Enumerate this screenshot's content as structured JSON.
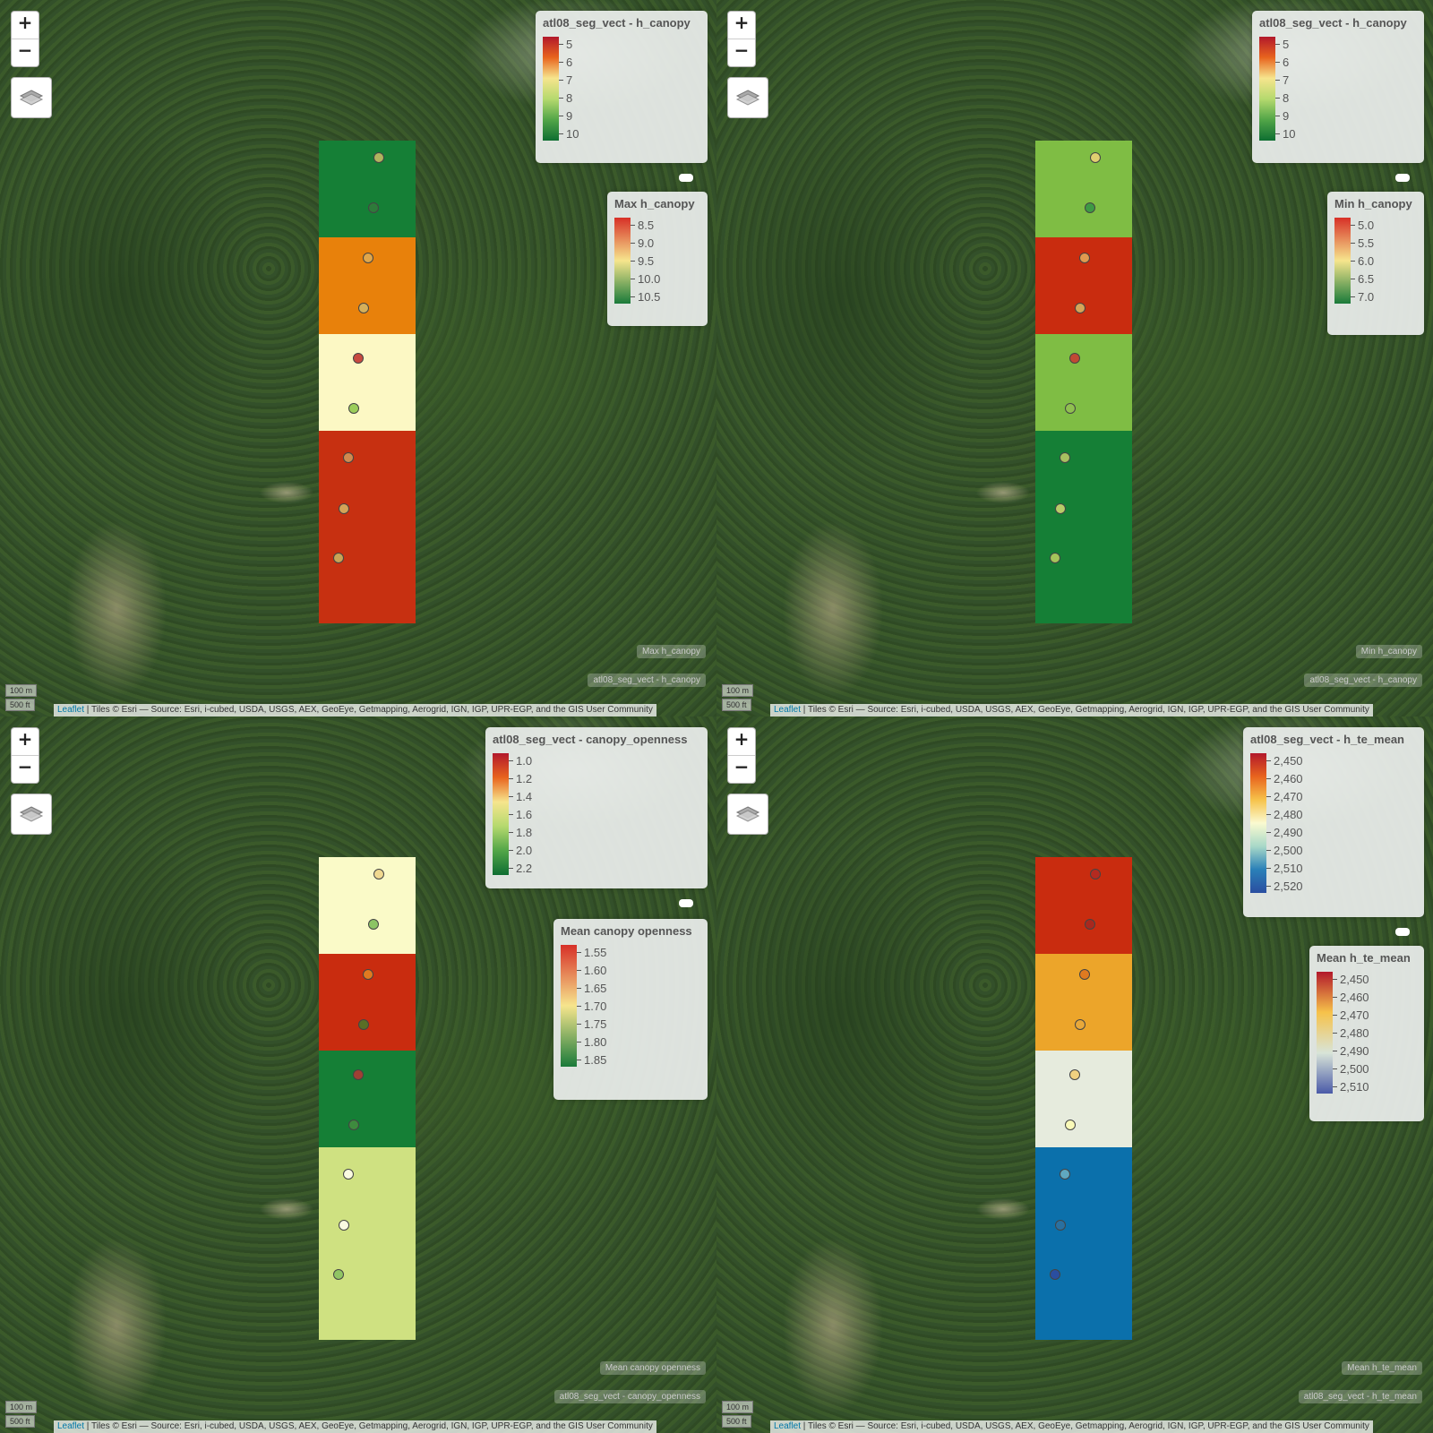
{
  "attribution": {
    "link": "Leaflet",
    "text": " | Tiles © Esri — Source: Esri, i-cubed, USDA, USGS, AEX, GeoEye, Getmapping, Aerogrid, IGN, IGP, UPR-EGP, and the GIS User Community"
  },
  "scale": {
    "metric": "100 m",
    "imperial": "500 ft"
  },
  "controls": {
    "zoom_in": "+",
    "zoom_out": "−"
  },
  "panels": [
    {
      "legend1": {
        "title": "atl08_seg_vect - h_canopy",
        "labels": [
          "5",
          "6",
          "7",
          "8",
          "9",
          "10"
        ],
        "colors": [
          "#b2182b",
          "#e8641e",
          "#f6e58d",
          "#b5d96e",
          "#52a548",
          "#0e6e32"
        ]
      },
      "legend2": {
        "title": "Max h_canopy",
        "labels": [
          "8.5",
          "9.0",
          "9.5",
          "10.0",
          "10.5"
        ],
        "colors": [
          "#d73027",
          "#f6e58d",
          "#1a7a3a"
        ]
      },
      "layer1_label": "Max h_canopy",
      "layer2_label": "atl08_seg_vect - h_canopy",
      "cells": [
        "#157f36",
        "#e8810b",
        "#fcf8c4",
        "#c73011"
      ],
      "points": [
        "#b0b45e",
        "#2e7a3a",
        "#e0a64a",
        "#d6b05a",
        "#c84a40",
        "#9ccd5a",
        "#d08a50",
        "#d4a458",
        "#c8a456"
      ]
    },
    {
      "legend1": {
        "title": "atl08_seg_vect - h_canopy",
        "labels": [
          "5",
          "6",
          "7",
          "8",
          "9",
          "10"
        ],
        "colors": [
          "#b2182b",
          "#e8641e",
          "#f6e58d",
          "#b5d96e",
          "#52a548",
          "#0e6e32"
        ]
      },
      "legend2": {
        "title": "Min h_canopy",
        "labels": [
          "5.0",
          "5.5",
          "6.0",
          "6.5",
          "7.0"
        ],
        "colors": [
          "#d73027",
          "#f6e58d",
          "#1a7a3a"
        ]
      },
      "layer1_label": "Min h_canopy",
      "layer2_label": "atl08_seg_vect - h_canopy",
      "cells": [
        "#7fbd44",
        "#c92c0f",
        "#7fbd44",
        "#157f36"
      ],
      "points": [
        "#e0d070",
        "#3e9a44",
        "#e09a50",
        "#d6a458",
        "#c04a34",
        "#90c050",
        "#a8c060",
        "#b8cc68",
        "#a6c45a"
      ]
    },
    {
      "legend1": {
        "title": "atl08_seg_vect - canopy_openness",
        "labels": [
          "1.0",
          "1.2",
          "1.4",
          "1.6",
          "1.8",
          "2.0",
          "2.2"
        ],
        "colors": [
          "#b2182b",
          "#e8641e",
          "#f6e58d",
          "#b5d96e",
          "#52a548",
          "#0e6e32"
        ]
      },
      "legend2": {
        "title": "Mean canopy openness",
        "labels": [
          "1.55",
          "1.60",
          "1.65",
          "1.70",
          "1.75",
          "1.80",
          "1.85"
        ],
        "colors": [
          "#d73027",
          "#f6e58d",
          "#1a7a3a"
        ]
      },
      "layer1_label": "Mean canopy openness",
      "layer2_label": "atl08_seg_vect - canopy_openness",
      "cells": [
        "#fafac8",
        "#c92c0f",
        "#157f36",
        "#cfe181"
      ],
      "points": [
        "#f0d890",
        "#8cc464",
        "#e07a20",
        "#5a6e26",
        "#a04034",
        "#3e8a3e",
        "#fafae0",
        "#fafae0",
        "#90c464"
      ]
    },
    {
      "legend1": {
        "title": "atl08_seg_vect - h_te_mean",
        "labels": [
          "2,450",
          "2,460",
          "2,470",
          "2,480",
          "2,490",
          "2,500",
          "2,510",
          "2,520"
        ],
        "colors": [
          "#b2182b",
          "#e8641e",
          "#f6c24a",
          "#fafad0",
          "#a8d8c8",
          "#2a80b8",
          "#2a4ea0"
        ]
      },
      "legend2": {
        "title": "Mean h_te_mean",
        "labels": [
          "2,450",
          "2,460",
          "2,470",
          "2,480",
          "2,490",
          "2,500",
          "2,510"
        ],
        "colors": [
          "#b2182b",
          "#f6c24a",
          "#d8e4d8",
          "#4a5aa8"
        ]
      },
      "layer1_label": "Mean h_te_mean",
      "layer2_label": "atl08_seg_vect - h_te_mean",
      "cells": [
        "#c92c0f",
        "#eca52a",
        "#e6ebdd",
        "#0b70ab"
      ],
      "points": [
        "#b42a20",
        "#a8281e",
        "#e07a20",
        "#e8a83a",
        "#f0d080",
        "#fafab8",
        "#60a8c0",
        "#2a70a0",
        "#2a4ea0"
      ]
    }
  ]
}
